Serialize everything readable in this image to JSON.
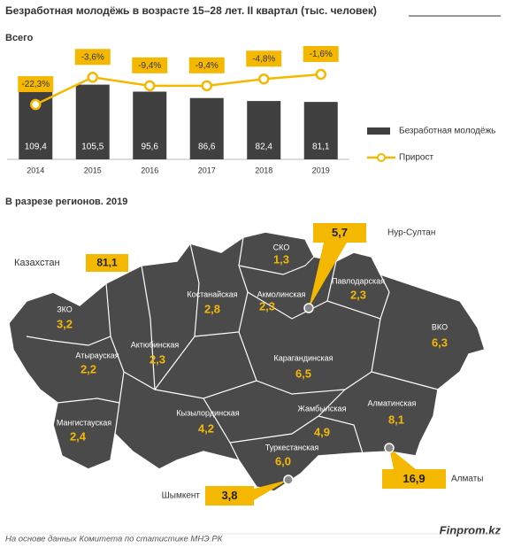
{
  "title": "Безработная молодёжь в возрасте 15–28  лет. II квартал (тыс. человек)",
  "chart_data": {
    "type": "bar",
    "subtitle": "Всего",
    "categories": [
      "2014",
      "2015",
      "2016",
      "2017",
      "2018",
      "2019"
    ],
    "series": [
      {
        "name": "Безработная молодёжь",
        "color": "#404040",
        "values": [
          109.4,
          105.5,
          95.6,
          86.6,
          82.4,
          81.1
        ],
        "value_labels": [
          "109,4",
          "105,5",
          "95,6",
          "86,6",
          "82,4",
          "81,1"
        ]
      },
      {
        "name": "Прирост",
        "type": "line",
        "axis": "y2",
        "color": "#f5b800",
        "values": [
          -22.3,
          -3.6,
          -9.4,
          -9.4,
          -4.8,
          -1.6
        ],
        "value_labels": [
          "-22,3%",
          "-3,6%",
          "-9,4%",
          "-9,4%",
          "-4,8%",
          "-1,6%"
        ]
      }
    ],
    "ylim": [
      0,
      150
    ],
    "y2lim": [
      -60,
      13
    ],
    "legend": "right"
  },
  "map": {
    "heading": "В разрезе регионов. 2019",
    "total": {
      "name": "Казахстан",
      "value": "81,1"
    },
    "regions": [
      {
        "name": "ЗКО",
        "value": "3,2"
      },
      {
        "name": "Атырауская",
        "value": "2,2"
      },
      {
        "name": "Мангистауская",
        "value": "2,4"
      },
      {
        "name": "Актюбинская",
        "value": "2,3"
      },
      {
        "name": "Костанайская",
        "value": "2,8"
      },
      {
        "name": "СКО",
        "value": "1,3"
      },
      {
        "name": "Акмолинская",
        "value": "2,3"
      },
      {
        "name": "Павлодарская",
        "value": "2,3"
      },
      {
        "name": "ВКО",
        "value": "6,3"
      },
      {
        "name": "Карагандинская",
        "value": "6,5"
      },
      {
        "name": "Кызылординская",
        "value": "4,2"
      },
      {
        "name": "Жамбылская",
        "value": "4,9"
      },
      {
        "name": "Алматинская",
        "value": "8,1"
      },
      {
        "name": "Туркестанская",
        "value": "6,0"
      }
    ],
    "cities": [
      {
        "name": "Нур-Султан",
        "value": "5,7"
      },
      {
        "name": "Алматы",
        "value": "16,9"
      },
      {
        "name": "Шымкент",
        "value": "3,8"
      }
    ]
  },
  "footer": {
    "source": "На основе данных Комитета по статистике МНЭ РК",
    "brand": "Finprom.kz"
  }
}
